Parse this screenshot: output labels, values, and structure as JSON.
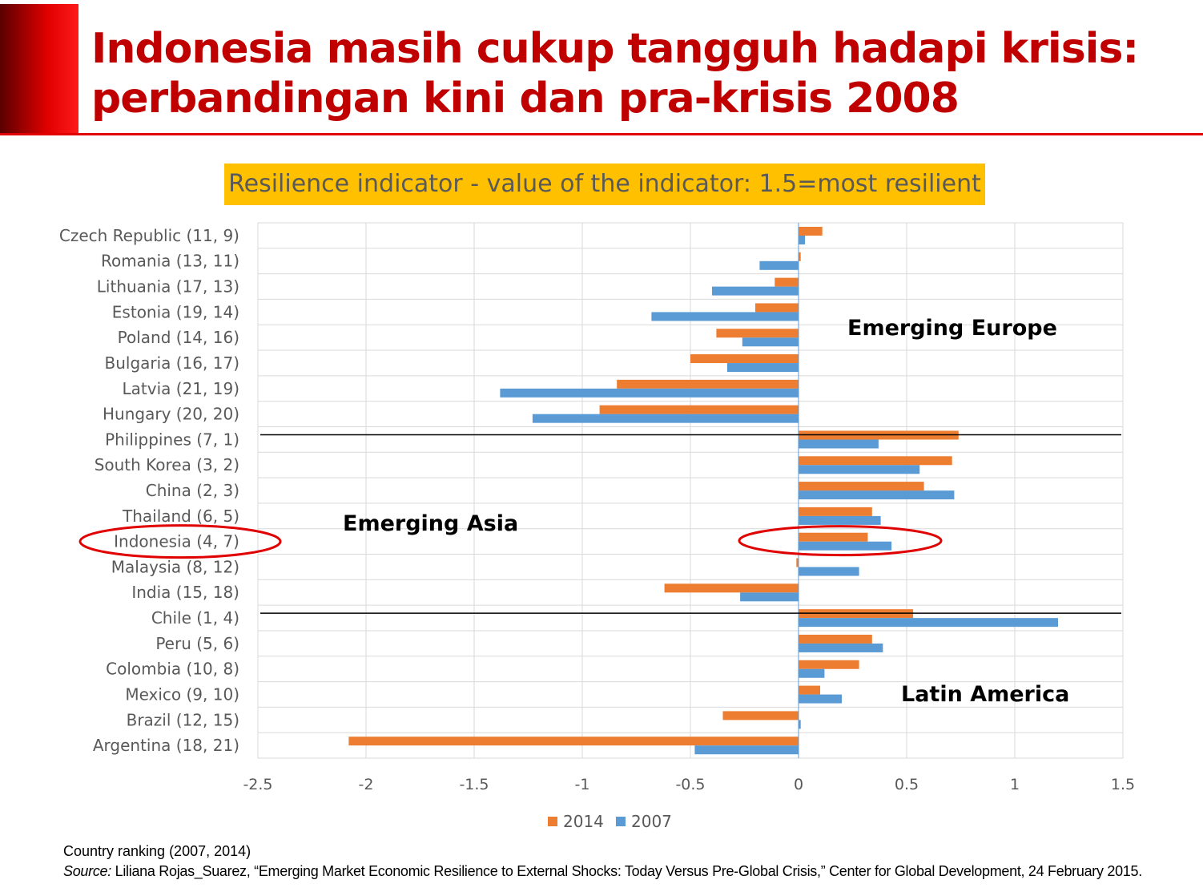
{
  "title_line1": "Indonesia masih cukup tangguh hadapi krisis:",
  "title_line2": "perbandingan kini dan pra-krisis 2008",
  "footer": {
    "note": "Country ranking (2007, 2014)",
    "source_label": "Source:",
    "source_text": " Liliana Rojas_Suarez, “Emerging Market Economic Resilience to External Shocks: Today Versus Pre-Global Crisis,” Center for Global Development, 24 February 2015."
  },
  "chart_data": {
    "type": "bar",
    "orientation": "horizontal",
    "title": "Resilience  indicator - value of the indicator: 1.5=most resilient",
    "categories": [
      "Czech Republic (11, 9)",
      "Romania (13, 11)",
      "Lithuania (17, 13)",
      "Estonia (19, 14)",
      "Poland (14, 16)",
      "Bulgaria (16, 17)",
      "Latvia (21, 19)",
      "Hungary (20, 20)",
      "Philippines (7, 1)",
      "South Korea (3, 2)",
      "China (2, 3)",
      "Thailand (6, 5)",
      "Indonesia (4, 7)",
      "Malaysia (8, 12)",
      "India (15, 18)",
      "Chile (1, 4)",
      "Peru (5, 6)",
      "Colombia (10, 8)",
      "Mexico (9, 10)",
      "Brazil (12, 15)",
      "Argentina (18, 21)"
    ],
    "series": [
      {
        "name": "2014",
        "color": "#ED7D31",
        "values": [
          0.11,
          0.01,
          -0.11,
          -0.2,
          -0.38,
          -0.5,
          -0.84,
          -0.92,
          0.74,
          0.71,
          0.58,
          0.34,
          0.32,
          -0.01,
          -0.62,
          0.53,
          0.34,
          0.28,
          0.1,
          -0.35,
          -2.08
        ]
      },
      {
        "name": "2007",
        "color": "#5B9BD5",
        "values": [
          0.03,
          -0.18,
          -0.4,
          -0.68,
          -0.26,
          -0.33,
          -1.38,
          -1.23,
          0.37,
          0.56,
          0.72,
          0.38,
          0.43,
          0.28,
          -0.27,
          1.2,
          0.39,
          0.12,
          0.2,
          0.01,
          -0.48
        ]
      }
    ],
    "xlim": [
      -2.5,
      1.5
    ],
    "xticks": [
      "-2.5",
      "-2",
      "-1.5",
      "-1",
      "-0.5",
      "0",
      "0.5",
      "1",
      "1.5"
    ],
    "xtick_values": [
      -2.5,
      -2,
      -1.5,
      -1,
      -0.5,
      0,
      0.5,
      1,
      1.5
    ],
    "grid": true,
    "legend": "bottom",
    "group_separators_after": [
      7,
      14
    ],
    "annotations": [
      "Emerging Europe",
      "Emerging Asia",
      "Latin America"
    ],
    "highlighted_category": 12
  }
}
